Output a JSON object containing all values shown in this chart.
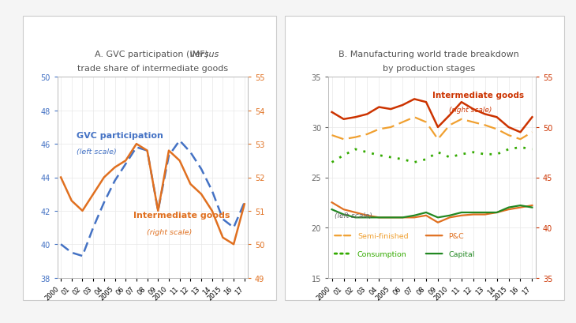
{
  "years": [
    2000,
    2001,
    2002,
    2003,
    2004,
    2005,
    2006,
    2007,
    2008,
    2009,
    2010,
    2011,
    2012,
    2013,
    2014,
    2015,
    2016,
    2017
  ],
  "panel_A": {
    "title_normal": "A. GVC participation (IMF) ",
    "title_italic": "versus",
    "title_line2": "trade share of intermediate goods",
    "gvc_participation": [
      40.0,
      39.5,
      39.3,
      41.0,
      42.5,
      43.8,
      44.8,
      45.8,
      45.6,
      42.0,
      45.3,
      46.2,
      45.5,
      44.5,
      43.2,
      41.5,
      41.0,
      42.5
    ],
    "intermediate_goods_right": [
      52.0,
      51.3,
      51.0,
      51.5,
      52.0,
      52.3,
      52.5,
      53.0,
      52.8,
      51.0,
      52.8,
      52.5,
      51.8,
      51.5,
      51.0,
      50.2,
      50.0,
      51.2
    ],
    "left_ylim": [
      38,
      50
    ],
    "right_ylim": [
      49,
      55
    ],
    "left_yticks": [
      38,
      40,
      42,
      44,
      46,
      48,
      50
    ],
    "right_yticks": [
      49,
      50,
      51,
      52,
      53,
      54,
      55
    ],
    "gvc_color": "#4472C4",
    "intermediate_color": "#E07020",
    "label_gvc": "GVC participation",
    "label_gvc_sub": "(left scale)",
    "label_int": "Intermediate goods",
    "label_int_sub": "(right scale)"
  },
  "panel_B": {
    "title_line1": "B. Manufacturing world trade breakdown",
    "title_line2": "by production stages",
    "intermediate_goods_right": [
      51.5,
      50.8,
      51.0,
      51.3,
      52.0,
      51.8,
      52.2,
      52.8,
      52.5,
      50.0,
      51.2,
      52.5,
      51.8,
      51.3,
      51.0,
      50.0,
      49.5,
      51.0
    ],
    "semi_finished": [
      29.2,
      28.8,
      29.0,
      29.3,
      29.8,
      30.0,
      30.5,
      31.0,
      30.5,
      28.8,
      30.2,
      30.8,
      30.5,
      30.2,
      29.8,
      29.2,
      28.8,
      29.5
    ],
    "pc": [
      22.5,
      21.8,
      21.5,
      21.2,
      21.0,
      21.0,
      21.0,
      21.0,
      21.2,
      20.5,
      21.0,
      21.2,
      21.3,
      21.3,
      21.5,
      21.8,
      22.0,
      22.2
    ],
    "consumption": [
      26.5,
      27.2,
      27.8,
      27.5,
      27.2,
      27.0,
      26.8,
      26.5,
      26.8,
      27.5,
      27.0,
      27.3,
      27.5,
      27.3,
      27.3,
      27.8,
      28.0,
      27.8
    ],
    "capital": [
      21.8,
      21.3,
      21.0,
      21.0,
      21.0,
      21.0,
      21.0,
      21.2,
      21.5,
      21.0,
      21.2,
      21.5,
      21.5,
      21.5,
      21.5,
      22.0,
      22.2,
      22.0
    ],
    "left_ylim": [
      15,
      35
    ],
    "right_ylim": [
      35,
      55
    ],
    "left_yticks": [
      15,
      20,
      25,
      30,
      35
    ],
    "right_yticks": [
      35,
      40,
      45,
      50,
      55
    ],
    "intermediate_color": "#CC3300",
    "semi_finished_color": "#F0A030",
    "pc_color": "#E07020",
    "consumption_color": "#33AA00",
    "capital_color": "#228822",
    "label_int": "Intermediate goods",
    "label_int_sub": "(right scale)",
    "label_semi": "Semi-finished",
    "label_pc": "P&C",
    "label_cons": "Consumption",
    "label_cap": "Capital",
    "label_left_scale": "(left scale)"
  },
  "bg_color": "#F5F5F5",
  "panel_bg": "#FFFFFF",
  "outer_box_color": "#CCCCCC",
  "title_color": "#555555",
  "grid_color": "#E8E8E8"
}
